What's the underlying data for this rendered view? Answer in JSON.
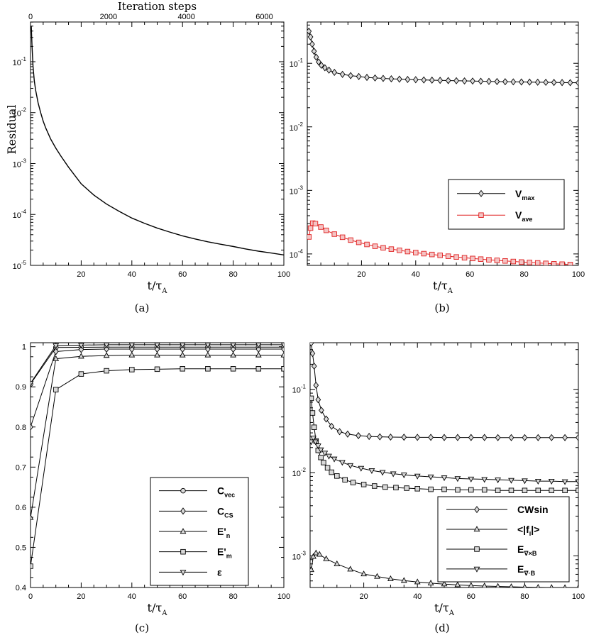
{
  "chart_data": [
    {
      "type": "line",
      "caption": "(a)",
      "xlabel": "t/τ",
      "xlabel_sub": "A",
      "ylabel": "Residual",
      "top_axis_label": "Iteration steps",
      "top_ticks": [
        "0",
        "2000",
        "4000",
        "6000"
      ],
      "top_tick_values": [
        0,
        2000,
        4000,
        6000
      ],
      "top_max": 6500,
      "y_scale": "log",
      "xlim": [
        0,
        100
      ],
      "ylim_exp": [
        -5,
        -0.22
      ],
      "x_ticks": [
        "20",
        "40",
        "60",
        "80",
        "100"
      ],
      "x_tick_values": [
        20,
        40,
        60,
        80,
        100
      ],
      "y_ticks": [
        {
          "base": "10",
          "exp": "-1",
          "value": 0.1
        },
        {
          "base": "10",
          "exp": "-2",
          "value": 0.01
        },
        {
          "base": "10",
          "exp": "-3",
          "value": 0.001
        },
        {
          "base": "10",
          "exp": "-4",
          "value": 0.0001
        },
        {
          "base": "10",
          "exp": "-5",
          "value": 1e-05
        }
      ],
      "series": [
        {
          "color": "#000000",
          "x": [
            0.3,
            0.6,
            1,
            1.5,
            2,
            3,
            4,
            5,
            6,
            8,
            10,
            12,
            15,
            20,
            25,
            30,
            35,
            40,
            45,
            50,
            55,
            60,
            65,
            70,
            75,
            80,
            85,
            90,
            95,
            100
          ],
          "y": [
            0.5,
            0.2,
            0.08,
            0.042,
            0.028,
            0.0155,
            0.01,
            0.0068,
            0.005,
            0.003,
            0.002,
            0.0014,
            0.00085,
            0.0004,
            0.00024,
            0.00016,
            0.000115,
            8.5e-05,
            6.7e-05,
            5.4e-05,
            4.5e-05,
            3.8e-05,
            3.3e-05,
            2.9e-05,
            2.6e-05,
            2.35e-05,
            2.1e-05,
            1.9e-05,
            1.75e-05,
            1.6e-05
          ]
        }
      ]
    },
    {
      "type": "line",
      "caption": "(b)",
      "xlabel": "t/τ",
      "xlabel_sub": "A",
      "y_scale": "log",
      "xlim": [
        0,
        100
      ],
      "ylim_exp": [
        -4.18,
        -0.35
      ],
      "x_ticks": [
        "20",
        "40",
        "60",
        "80",
        "100"
      ],
      "x_tick_values": [
        20,
        40,
        60,
        80,
        100
      ],
      "y_ticks": [
        {
          "base": "10",
          "exp": "-1",
          "value": 0.1
        },
        {
          "base": "10",
          "exp": "-2",
          "value": 0.01
        },
        {
          "base": "10",
          "exp": "-3",
          "value": 0.001
        },
        {
          "base": "10",
          "exp": "-4",
          "value": 0.0001
        }
      ],
      "legend": "inside",
      "series": [
        {
          "name": "V",
          "name_sub": "max",
          "color": "#000000",
          "fill": "#d8d8d8",
          "marker": "diamond",
          "x": [
            0.6,
            1.2,
            1.8,
            2.5,
            3.3,
            4.2,
            5.2,
            6.5,
            8,
            10,
            13,
            16,
            19,
            22,
            25,
            28,
            31,
            34,
            37,
            40,
            43,
            46,
            49,
            52,
            55,
            58,
            61,
            64,
            67,
            70,
            73,
            76,
            79,
            82,
            85,
            88,
            91,
            94,
            97,
            100
          ],
          "y": [
            0.32,
            0.26,
            0.2,
            0.155,
            0.125,
            0.105,
            0.093,
            0.085,
            0.078,
            0.072,
            0.067,
            0.064,
            0.062,
            0.06,
            0.0588,
            0.0578,
            0.057,
            0.0563,
            0.0557,
            0.0552,
            0.0547,
            0.0543,
            0.0539,
            0.0535,
            0.0532,
            0.0528,
            0.0525,
            0.0522,
            0.0519,
            0.0516,
            0.0513,
            0.051,
            0.0508,
            0.0506,
            0.0504,
            0.0502,
            0.05,
            0.0498,
            0.0496,
            0.0494
          ]
        },
        {
          "name": "V",
          "name_sub": "ave",
          "color": "#e02020",
          "fill": "#f4c4c4",
          "marker": "square",
          "x": [
            0.6,
            1.2,
            2,
            3,
            5,
            7,
            10,
            13,
            16,
            19,
            22,
            25,
            28,
            31,
            34,
            37,
            40,
            43,
            46,
            49,
            52,
            55,
            58,
            61,
            64,
            67,
            70,
            73,
            76,
            79,
            82,
            85,
            88,
            91,
            94,
            97
          ],
          "y": [
            0.000185,
            0.000255,
            0.000305,
            0.0003,
            0.000265,
            0.000235,
            0.000205,
            0.000183,
            0.000165,
            0.000152,
            0.000141,
            0.000132,
            0.000125,
            0.000119,
            0.000114,
            0.000109,
            0.000105,
            0.000101,
            9.8e-05,
            9.5e-05,
            9.2e-05,
            8.95e-05,
            8.7e-05,
            8.48e-05,
            8.28e-05,
            8.1e-05,
            7.92e-05,
            7.76e-05,
            7.6e-05,
            7.46e-05,
            7.34e-05,
            7.22e-05,
            7.1e-05,
            7e-05,
            6.9e-05,
            6.8e-05
          ]
        }
      ]
    },
    {
      "type": "line",
      "caption": "(c)",
      "xlabel": "t/τ",
      "xlabel_sub": "A",
      "y_scale": "linear",
      "xlim": [
        0,
        100
      ],
      "ylim": [
        0.4,
        1.01
      ],
      "x_ticks": [
        "0",
        "20",
        "40",
        "60",
        "80",
        "100"
      ],
      "x_tick_values": [
        0,
        20,
        40,
        60,
        80,
        100
      ],
      "y_ticks": [
        "0.4",
        "0.5",
        "0.6",
        "0.7",
        "0.8",
        "0.9",
        "1"
      ],
      "y_tick_values": [
        0.4,
        0.5,
        0.6,
        0.7,
        0.8,
        0.9,
        1.0
      ],
      "legend": "inside",
      "series": [
        {
          "name": "C",
          "name_sub": "vec",
          "prime": false,
          "marker": "circle",
          "color": "#000000",
          "fill": "#d8d8d8",
          "x": [
            0,
            10,
            20,
            30,
            40,
            50,
            60,
            70,
            80,
            90,
            100
          ],
          "y": [
            0.907,
            0.998,
            0.9985,
            0.999,
            0.999,
            0.999,
            0.999,
            0.999,
            0.999,
            0.999,
            0.999
          ]
        },
        {
          "name": "C",
          "name_sub": "CS",
          "prime": false,
          "marker": "diamond",
          "color": "#000000",
          "fill": "#d8d8d8",
          "x": [
            0,
            10,
            20,
            30,
            40,
            50,
            60,
            70,
            80,
            90,
            100
          ],
          "y": [
            0.8,
            0.988,
            0.993,
            0.994,
            0.994,
            0.994,
            0.994,
            0.994,
            0.994,
            0.994,
            0.994
          ]
        },
        {
          "name": "E",
          "name_sub": "n",
          "prime": true,
          "marker": "triangle",
          "color": "#000000",
          "fill": "#d8d8d8",
          "x": [
            0,
            10,
            20,
            30,
            40,
            50,
            60,
            70,
            80,
            90,
            100
          ],
          "y": [
            0.574,
            0.97,
            0.976,
            0.978,
            0.979,
            0.979,
            0.979,
            0.979,
            0.979,
            0.979,
            0.979
          ]
        },
        {
          "name": "E",
          "name_sub": "m",
          "prime": true,
          "marker": "square",
          "color": "#000000",
          "fill": "#d8d8d8",
          "x": [
            0,
            10,
            20,
            30,
            40,
            50,
            60,
            70,
            80,
            90,
            100
          ],
          "y": [
            0.453,
            0.893,
            0.932,
            0.94,
            0.943,
            0.944,
            0.945,
            0.945,
            0.945,
            0.945,
            0.945
          ]
        },
        {
          "name": "ε",
          "name_sub": "",
          "prime": false,
          "marker": "triangle-down",
          "color": "#000000",
          "fill": "#d8d8d8",
          "x": [
            0,
            10,
            20,
            30,
            40,
            50,
            60,
            70,
            80,
            90,
            100
          ],
          "y": [
            0.909,
            1.003,
            1.004,
            1.005,
            1.005,
            1.005,
            1.005,
            1.005,
            1.005,
            1.005,
            1.005
          ]
        }
      ]
    },
    {
      "type": "line",
      "caption": "(d)",
      "xlabel": "t/τ",
      "xlabel_sub": "A",
      "y_scale": "log",
      "xlim": [
        0,
        100
      ],
      "ylim_exp": [
        -3.38,
        -0.44
      ],
      "x_ticks": [
        "20",
        "40",
        "60",
        "80",
        "100"
      ],
      "x_tick_values": [
        20,
        40,
        60,
        80,
        100
      ],
      "y_ticks": [
        {
          "base": "10",
          "exp": "-1",
          "value": 0.1
        },
        {
          "base": "10",
          "exp": "-2",
          "value": 0.01
        },
        {
          "base": "10",
          "exp": "-3",
          "value": 0.001
        }
      ],
      "legend": "inside",
      "series": [
        {
          "name": "CWsin",
          "name_sub": "",
          "marker": "diamond",
          "color": "#000000",
          "fill": "#d8d8d8",
          "x": [
            0.4,
            0.9,
            1.5,
            2.2,
            3,
            4.2,
            6,
            8,
            11,
            14,
            18,
            22,
            26,
            30,
            35,
            40,
            45,
            50,
            55,
            60,
            65,
            70,
            75,
            80,
            85,
            90,
            95,
            100
          ],
          "y": [
            0.36,
            0.27,
            0.19,
            0.112,
            0.075,
            0.056,
            0.044,
            0.036,
            0.031,
            0.029,
            0.0278,
            0.0272,
            0.0269,
            0.0267,
            0.0266,
            0.0265,
            0.0265,
            0.0264,
            0.0264,
            0.0264,
            0.0264,
            0.0263,
            0.0263,
            0.0263,
            0.0263,
            0.0263,
            0.0263,
            0.0263
          ]
        },
        {
          "name": "<|f",
          "name_sub": "i",
          "name_after": "|>",
          "marker": "triangle",
          "color": "#000000",
          "fill": "#d8d8d8",
          "x": [
            0.4,
            1.2,
            2.2,
            3.5,
            6,
            10,
            15,
            20,
            25,
            30,
            35,
            40,
            45,
            50,
            55,
            60,
            65,
            70,
            75,
            80,
            85,
            90,
            95,
            100
          ],
          "y": [
            0.00068,
            0.00098,
            0.00108,
            0.00104,
            0.00092,
            0.0008,
            0.00069,
            0.000605,
            0.000565,
            0.00053,
            0.000505,
            0.000485,
            0.00047,
            0.000458,
            0.000448,
            0.00044,
            0.000434,
            0.000429,
            0.000425,
            0.000421,
            0.000418,
            0.000416,
            0.000414,
            0.000412
          ]
        },
        {
          "name": "E",
          "name_sub": "∇×B",
          "marker": "square",
          "color": "#000000",
          "fill": "#d8d8d8",
          "x": [
            0.4,
            0.9,
            1.5,
            2.2,
            3,
            4,
            5,
            6.5,
            8,
            10,
            13,
            16,
            20,
            24,
            28,
            32,
            36,
            40,
            45,
            50,
            55,
            60,
            65,
            70,
            75,
            80,
            85,
            90,
            95,
            100
          ],
          "y": [
            0.078,
            0.052,
            0.035,
            0.024,
            0.0185,
            0.0152,
            0.0132,
            0.0114,
            0.0101,
            0.0091,
            0.0082,
            0.0076,
            0.0072,
            0.0069,
            0.0067,
            0.0066,
            0.0065,
            0.0064,
            0.0063,
            0.0063,
            0.0062,
            0.0062,
            0.0062,
            0.0061,
            0.0061,
            0.0061,
            0.0061,
            0.0061,
            0.0061,
            0.0061
          ]
        },
        {
          "name": "E",
          "name_sub": "∇·B",
          "marker": "triangle-down",
          "color": "#000000",
          "fill": "#d8d8d8",
          "x": [
            0.4,
            1.2,
            2,
            3,
            4,
            5.5,
            7,
            9,
            12,
            15,
            19,
            23,
            27,
            31,
            35,
            40,
            45,
            50,
            55,
            60,
            65,
            70,
            75,
            80,
            85,
            90,
            95,
            100
          ],
          "y": [
            0.0235,
            0.026,
            0.0235,
            0.021,
            0.0188,
            0.0172,
            0.0158,
            0.0146,
            0.0133,
            0.0122,
            0.0113,
            0.0106,
            0.0101,
            0.0097,
            0.0094,
            0.0091,
            0.0089,
            0.0087,
            0.0085,
            0.0084,
            0.0083,
            0.0082,
            0.0081,
            0.008,
            0.0079,
            0.0079,
            0.0078,
            0.0078
          ]
        }
      ]
    }
  ]
}
